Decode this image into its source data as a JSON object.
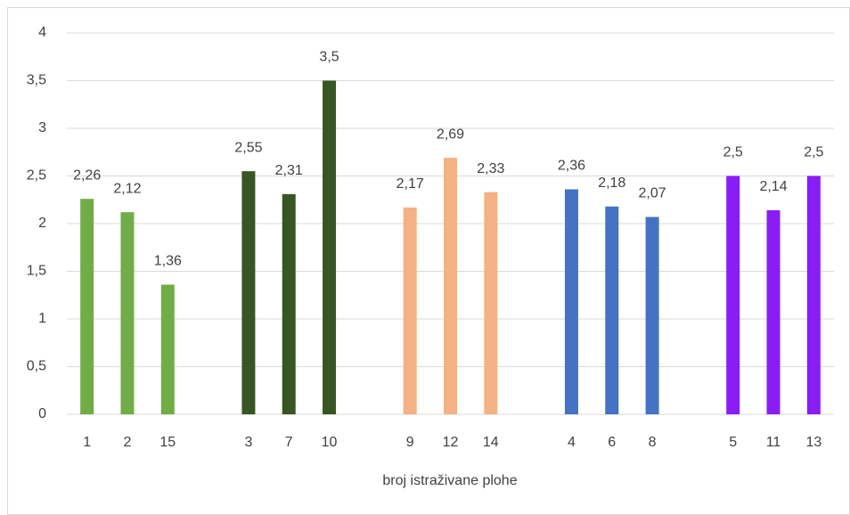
{
  "chart_data": {
    "type": "bar",
    "x_label": "broj istraživane plohe",
    "categories": [
      "1",
      "2",
      "15",
      null,
      "3",
      "7",
      "10",
      null,
      "9",
      "12",
      "14",
      null,
      "4",
      "6",
      "8",
      null,
      "5",
      "11",
      "13"
    ],
    "values": [
      2.26,
      2.12,
      1.36,
      null,
      2.55,
      2.31,
      3.5,
      null,
      2.17,
      2.69,
      2.33,
      null,
      2.36,
      2.18,
      2.07,
      null,
      2.5,
      2.14,
      2.5
    ],
    "value_labels": [
      "2,26",
      "2,12",
      "1,36",
      null,
      "2,55",
      "2,31",
      "3,5",
      null,
      "2,17",
      "2,69",
      "2,33",
      null,
      "2,36",
      "2,18",
      "2,07",
      null,
      "2,5",
      "2,14",
      "2,5"
    ],
    "colors": [
      "#70ad47",
      "#70ad47",
      "#70ad47",
      null,
      "#375623",
      "#375623",
      "#375623",
      null,
      "#f4b183",
      "#f4b183",
      "#f4b183",
      null,
      "#4472c4",
      "#4472c4",
      "#4472c4",
      null,
      "#8a1cf5",
      "#8a1cf5",
      "#8a1cf5"
    ],
    "ylim": [
      0,
      4
    ],
    "yticks": [
      0,
      {
        "value": 0.5,
        "label": "0,5"
      },
      1,
      {
        "value": 1.5,
        "label": "1,5"
      },
      2,
      {
        "value": 2.5,
        "label": "2,5"
      },
      3,
      {
        "value": 3.5,
        "label": "3,5"
      },
      4
    ],
    "grid": true
  }
}
